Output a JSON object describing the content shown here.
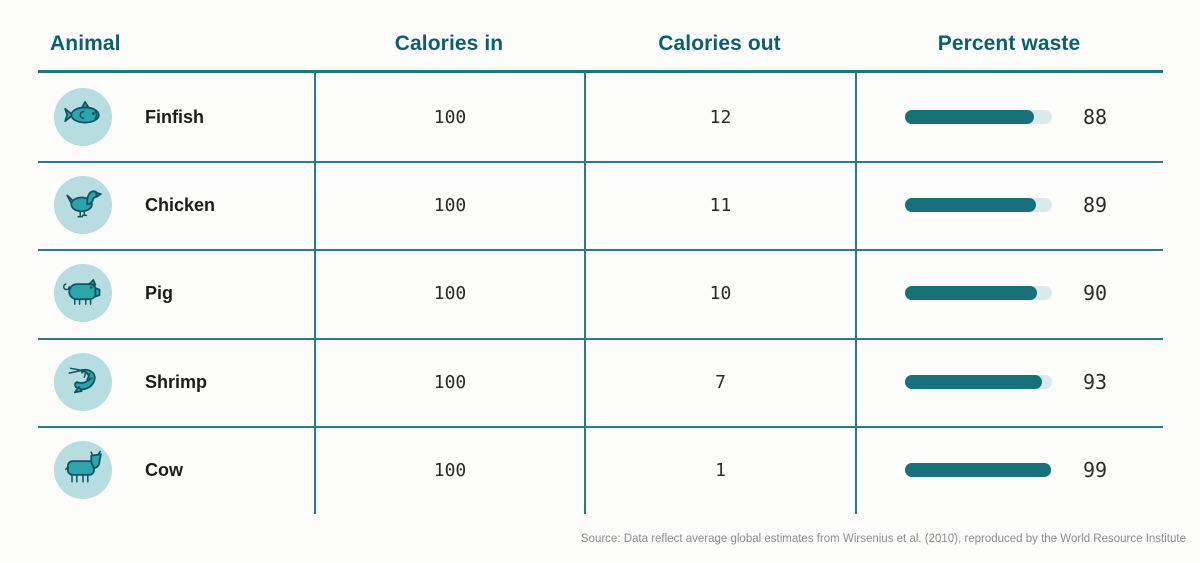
{
  "table": {
    "columns": {
      "animal": "Animal",
      "calories_in": "Calories in",
      "calories_out": "Calories out",
      "percent_waste": "Percent waste"
    },
    "rows": [
      {
        "animal": "Finfish",
        "icon": "fish-icon",
        "calories_in": "100",
        "calories_out": "12",
        "percent_waste": 88
      },
      {
        "animal": "Chicken",
        "icon": "chicken-icon",
        "calories_in": "100",
        "calories_out": "11",
        "percent_waste": 89
      },
      {
        "animal": "Pig",
        "icon": "pig-icon",
        "calories_in": "100",
        "calories_out": "10",
        "percent_waste": 90
      },
      {
        "animal": "Shrimp",
        "icon": "shrimp-icon",
        "calories_in": "100",
        "calories_out": "7",
        "percent_waste": 93
      },
      {
        "animal": "Cow",
        "icon": "cow-icon",
        "calories_in": "100",
        "calories_out": "1",
        "percent_waste": 99
      }
    ]
  },
  "source": "Source: Data reflect average global estimates from Wirsenius et al. (2010), reproduced by the World Resource Institute",
  "colors": {
    "header_text": "#0f5e6d",
    "grid_line": "#2a7b86",
    "bar_fill": "#17707a",
    "bar_track": "#d8eaec",
    "icon_circle_bg": "#b8dde1",
    "icon_fill": "#2da3ab",
    "icon_stroke": "#0d5560",
    "label_text": "#1c1c1c",
    "source_text": "#8c8c90",
    "background": "#fcfdfb"
  },
  "chart_data": {
    "type": "table",
    "title": "",
    "columns": [
      "Animal",
      "Calories in",
      "Calories out",
      "Percent waste"
    ],
    "rows": [
      [
        "Finfish",
        100,
        12,
        88
      ],
      [
        "Chicken",
        100,
        11,
        89
      ],
      [
        "Pig",
        100,
        10,
        90
      ],
      [
        "Shrimp",
        100,
        7,
        93
      ],
      [
        "Cow",
        100,
        1,
        99
      ]
    ],
    "bar_column": "Percent waste",
    "bar_series": {
      "name": "Percent waste",
      "values": [
        88,
        89,
        90,
        93,
        99
      ]
    },
    "bar_range": [
      0,
      100
    ],
    "source": "Source: Data reflect average global estimates from Wirsenius et al. (2010), reproduced by the World Resource Institute"
  }
}
